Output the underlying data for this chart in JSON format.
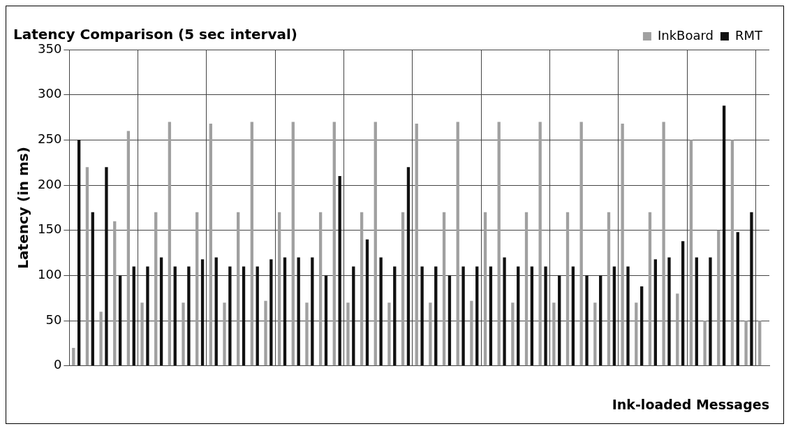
{
  "chart_data": {
    "type": "bar",
    "title": "Latency Comparison (5 sec interval)",
    "xlabel": "Ink-loaded Messages",
    "ylabel": "Latency (in ms)",
    "categories": [
      null,
      null,
      null,
      null,
      null,
      null,
      null,
      null,
      null,
      null,
      null,
      null,
      null,
      null,
      null,
      null,
      null,
      null,
      null,
      null,
      null,
      null,
      null,
      null,
      null,
      null,
      null,
      null,
      null,
      null,
      null,
      null,
      null,
      null,
      null,
      null,
      null,
      null,
      null,
      null,
      null,
      null,
      null,
      null,
      null,
      null,
      null,
      null,
      null,
      null,
      null
    ],
    "series": [
      {
        "name": "InkBoard",
        "color": "#a0a0a0",
        "values": [
          20,
          220,
          60,
          160,
          260,
          70,
          170,
          270,
          70,
          170,
          268,
          70,
          170,
          270,
          72,
          170,
          270,
          70,
          170,
          270,
          70,
          170,
          270,
          70,
          170,
          268,
          70,
          170,
          270,
          72,
          170,
          270,
          70,
          170,
          270,
          70,
          170,
          270,
          70,
          170,
          268,
          70,
          170,
          270,
          80,
          250,
          50,
          150,
          250,
          50,
          50
        ]
      },
      {
        "name": "RMT",
        "color": "#111111",
        "values": [
          250,
          170,
          220,
          100,
          110,
          110,
          120,
          110,
          110,
          118,
          120,
          110,
          110,
          110,
          118,
          120,
          120,
          120,
          100,
          210,
          110,
          140,
          120,
          110,
          220,
          110,
          110,
          100,
          110,
          110,
          110,
          120,
          110,
          110,
          110,
          100,
          110,
          100,
          100,
          110,
          110,
          88,
          118,
          120,
          138,
          120,
          120,
          288,
          148,
          170,
          null
        ]
      }
    ],
    "ylim": [
      0,
      350
    ],
    "yticks": [
      0,
      50,
      100,
      150,
      200,
      250,
      300,
      350
    ],
    "grid": true,
    "legend": "top right"
  }
}
